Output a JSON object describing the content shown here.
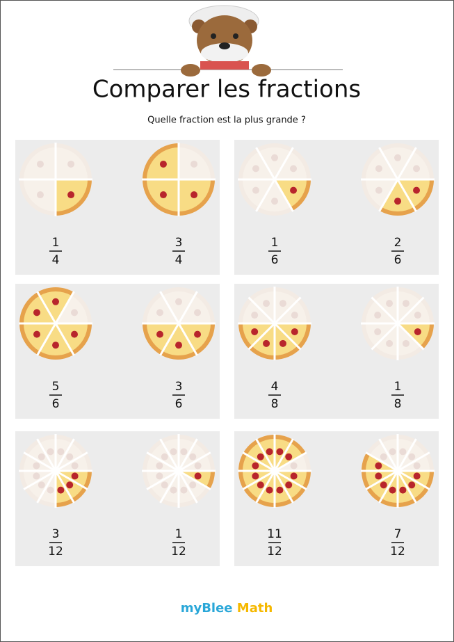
{
  "header": {
    "title": "Comparer les fractions",
    "subtitle": "Quelle fraction est la plus grande ?"
  },
  "panels": [
    {
      "left": {
        "numerator": 1,
        "denominator": 4
      },
      "right": {
        "numerator": 3,
        "denominator": 4
      }
    },
    {
      "left": {
        "numerator": 1,
        "denominator": 6
      },
      "right": {
        "numerator": 2,
        "denominator": 6
      }
    },
    {
      "left": {
        "numerator": 5,
        "denominator": 6
      },
      "right": {
        "numerator": 3,
        "denominator": 6
      }
    },
    {
      "left": {
        "numerator": 4,
        "denominator": 8
      },
      "right": {
        "numerator": 1,
        "denominator": 8
      }
    },
    {
      "left": {
        "numerator": 3,
        "denominator": 12
      },
      "right": {
        "numerator": 1,
        "denominator": 12
      }
    },
    {
      "left": {
        "numerator": 11,
        "denominator": 12
      },
      "right": {
        "numerator": 7,
        "denominator": 12
      }
    }
  ],
  "footer": {
    "brand_main": "myBlee",
    "brand_accent": "Math"
  }
}
